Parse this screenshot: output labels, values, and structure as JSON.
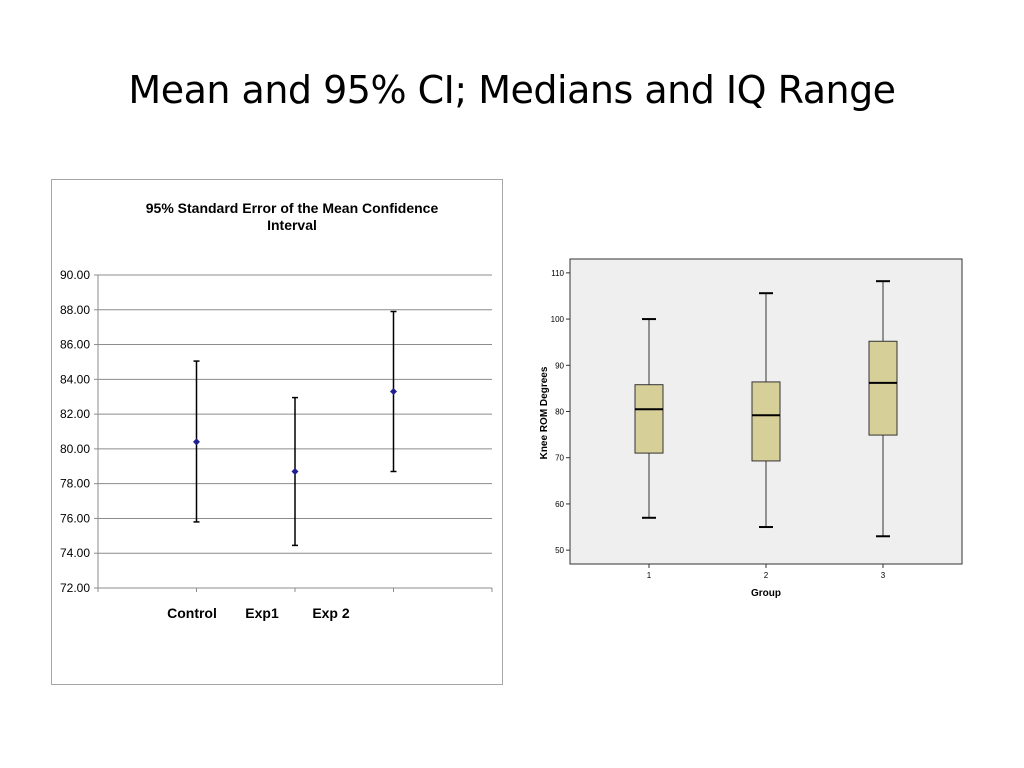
{
  "slide": {
    "title": "Mean and 95% CI; Medians and IQ Range"
  },
  "chart_data": [
    {
      "type": "errorbar",
      "title_line1": "95% Standard Error of the Mean Confidence",
      "title_line2": "Interval",
      "xlabel": "",
      "ylabel": "",
      "ylim": [
        72,
        90
      ],
      "y_ticks": [
        "72.00",
        "74.00",
        "76.00",
        "78.00",
        "80.00",
        "82.00",
        "84.00",
        "86.00",
        "88.00",
        "90.00"
      ],
      "grid": true,
      "categories": [
        "Control",
        "Exp1",
        "Exp 2"
      ],
      "mean": [
        80.4,
        78.7,
        83.3
      ],
      "upper": [
        85.05,
        82.95,
        87.9
      ],
      "lower": [
        75.8,
        74.45,
        78.7
      ],
      "marker_color": "#1f1f8f"
    },
    {
      "type": "boxplot",
      "xlabel": "Group",
      "ylabel": "Knee ROM Degrees",
      "ylim": [
        47,
        113
      ],
      "y_ticks": [
        "50",
        "60",
        "70",
        "80",
        "90",
        "100",
        "110"
      ],
      "categories": [
        "1",
        "2",
        "3"
      ],
      "boxes": [
        {
          "min": 57,
          "q1": 71,
          "median": 80.5,
          "q3": 85.8,
          "max": 100
        },
        {
          "min": 55,
          "q1": 69.3,
          "median": 79.2,
          "q3": 86.4,
          "max": 105.6
        },
        {
          "min": 53,
          "q1": 74.9,
          "median": 86.2,
          "q3": 95.2,
          "max": 108.2
        }
      ],
      "box_color": "#d6cf98",
      "plot_background": "#efefef"
    }
  ]
}
